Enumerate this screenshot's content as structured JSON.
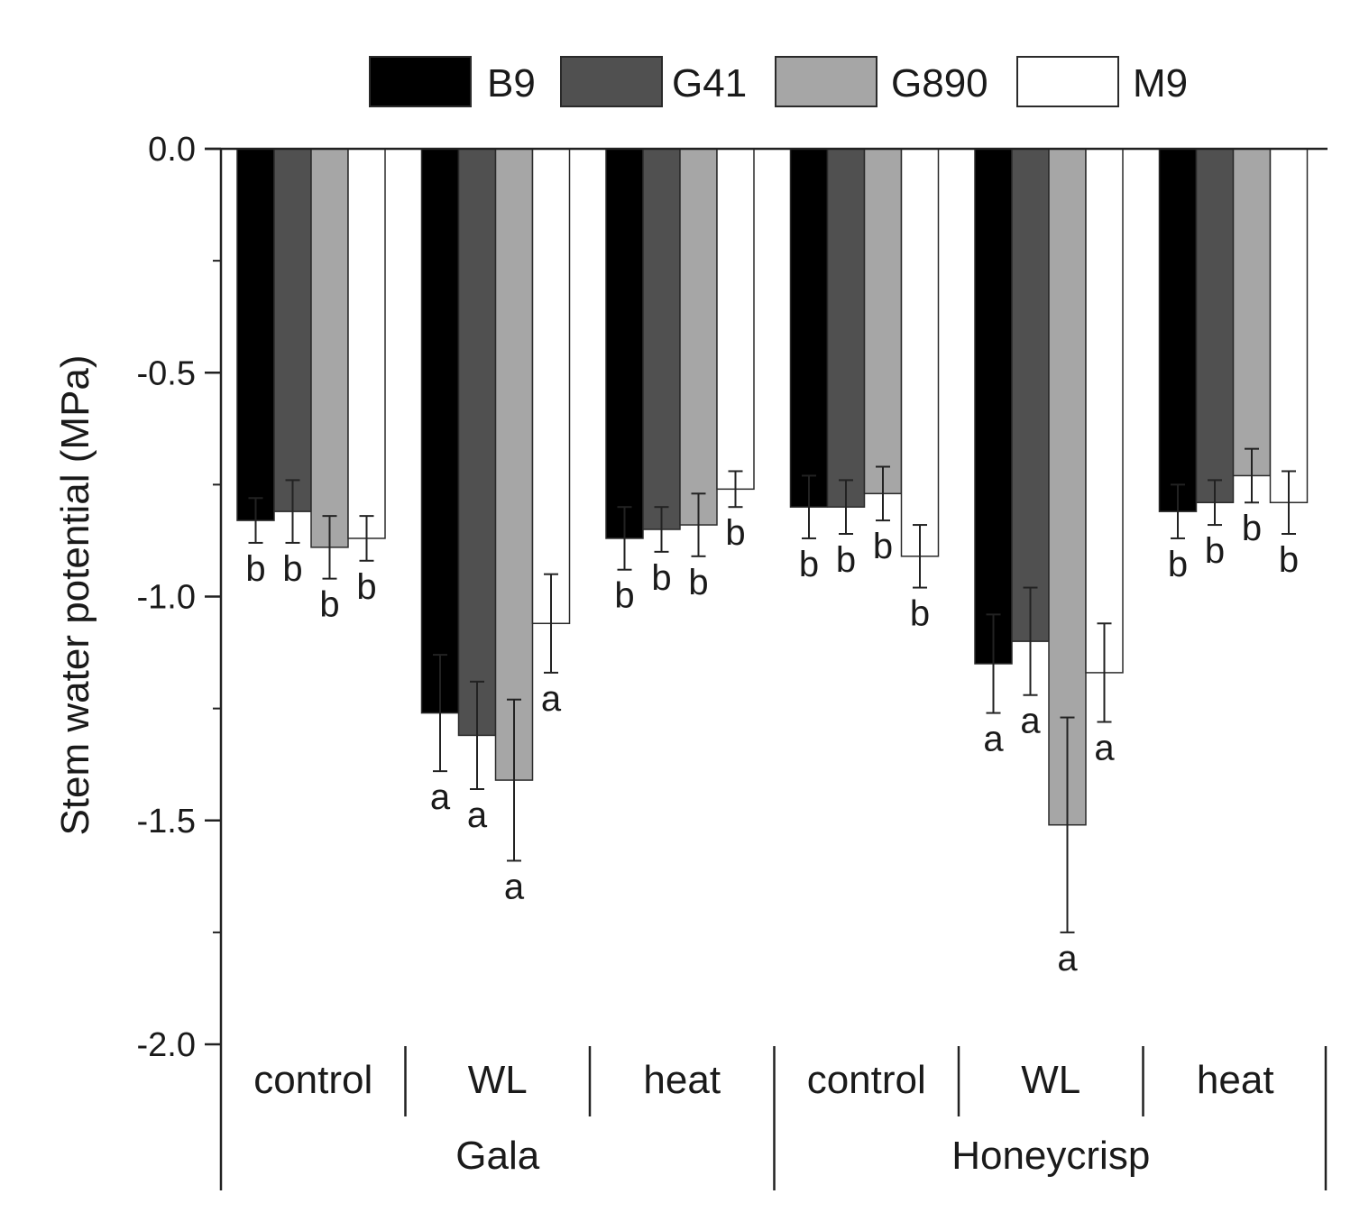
{
  "chart_data": {
    "type": "bar",
    "ylabel": "Stem water potential (MPa)",
    "ylim": [
      -2.0,
      0.0
    ],
    "yticks": [
      "0.0",
      "-0.5",
      "-1.0",
      "-1.5",
      "-2.0"
    ],
    "ytick_values": [
      0.0,
      -0.5,
      -1.0,
      -1.5,
      -2.0
    ],
    "legend_position": "top",
    "series": [
      {
        "name": "B9",
        "color": "#000000"
      },
      {
        "name": "G41",
        "color": "#505050"
      },
      {
        "name": "G890",
        "color": "#a6a6a6"
      },
      {
        "name": "M9",
        "color": "#ffffff"
      }
    ],
    "groups": [
      "Gala",
      "Honeycrisp"
    ],
    "categories": [
      "control",
      "WL",
      "heat",
      "control",
      "WL",
      "heat"
    ],
    "category_group": [
      0,
      0,
      0,
      1,
      1,
      1
    ],
    "values": [
      [
        -0.83,
        -0.81,
        -0.89,
        -0.87
      ],
      [
        -1.26,
        -1.31,
        -1.41,
        -1.06
      ],
      [
        -0.87,
        -0.85,
        -0.84,
        -0.76
      ],
      [
        -0.8,
        -0.8,
        -0.77,
        -0.91
      ],
      [
        -1.15,
        -1.1,
        -1.51,
        -1.17
      ],
      [
        -0.81,
        -0.79,
        -0.73,
        -0.79
      ]
    ],
    "errors": [
      [
        0.05,
        0.07,
        0.07,
        0.05
      ],
      [
        0.13,
        0.12,
        0.18,
        0.11
      ],
      [
        0.07,
        0.05,
        0.07,
        0.04
      ],
      [
        0.07,
        0.06,
        0.06,
        0.07
      ],
      [
        0.11,
        0.12,
        0.24,
        0.11
      ],
      [
        0.06,
        0.05,
        0.06,
        0.07
      ]
    ],
    "significance": [
      [
        "b",
        "b",
        "b",
        "b"
      ],
      [
        "a",
        "a",
        "a",
        "a"
      ],
      [
        "b",
        "b",
        "b",
        "b"
      ],
      [
        "b",
        "b",
        "b",
        "b"
      ],
      [
        "a",
        "a",
        "a",
        "a"
      ],
      [
        "b",
        "b",
        "b",
        "b"
      ]
    ]
  }
}
